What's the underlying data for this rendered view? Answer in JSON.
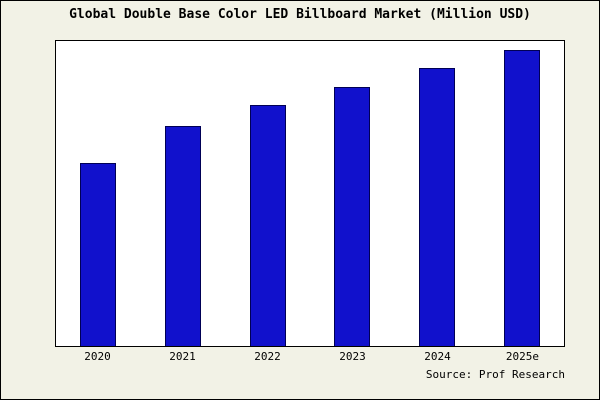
{
  "title": "Global Double Base Color LED Billboard Market (Million USD)",
  "source": "Source: Prof Research",
  "colors": {
    "background": "#f2f2e6",
    "plot_background": "#ffffff",
    "bar_fill": "#1111cc",
    "bar_border": "#000055",
    "frame_border": "#000000"
  },
  "chart_data": {
    "type": "bar",
    "categories": [
      "2020",
      "2021",
      "2022",
      "2023",
      "2024",
      "2025e"
    ],
    "values": [
      60,
      72,
      79,
      85,
      91,
      97
    ],
    "title": "Global Double Base Color LED Billboard Market (Million USD)",
    "xlabel": "",
    "ylabel": "",
    "ylim": [
      0,
      100
    ],
    "grid": false,
    "legend": "none",
    "y_axis_labels_visible": false,
    "source": "Source: Prof Research"
  }
}
